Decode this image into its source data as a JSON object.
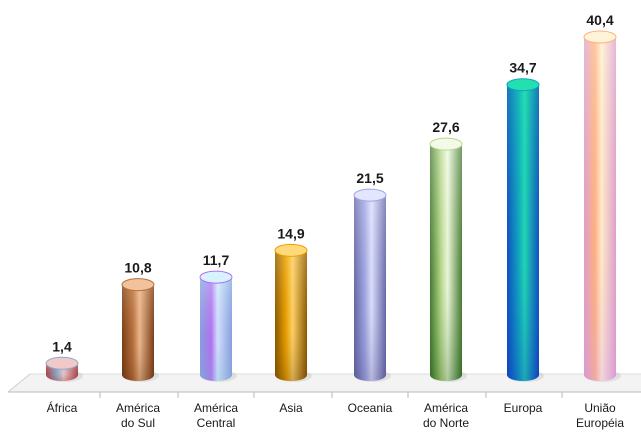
{
  "chart_data": {
    "type": "bar",
    "title": "",
    "xlabel": "",
    "ylabel": "",
    "categories": [
      "África",
      "América do Sul",
      "América Central",
      "Asia",
      "Oceania",
      "América do Norte",
      "Europa",
      "União Européia"
    ],
    "category_lines": [
      [
        "África"
      ],
      [
        "América",
        "do Sul"
      ],
      [
        "América",
        "Central"
      ],
      [
        "Asia"
      ],
      [
        "Oceania"
      ],
      [
        "América",
        "do Norte"
      ],
      [
        "Europa"
      ],
      [
        "União",
        "Européia"
      ]
    ],
    "values": [
      1.4,
      10.8,
      11.7,
      14.9,
      21.5,
      27.6,
      34.7,
      40.4
    ],
    "value_labels": [
      "1,4",
      "10,8",
      "11,7",
      "14,9",
      "21,5",
      "27,6",
      "34,7",
      "40,4"
    ],
    "ylim": [
      0,
      40.4
    ],
    "grid": false,
    "legend": "none",
    "bar_colors": [
      {
        "light": "#f2c9c9",
        "mid": "#8aa9c9",
        "dark": "#b03030"
      },
      {
        "light": "#f2c29a",
        "mid": "#b8703d",
        "dark": "#6e3410"
      },
      {
        "light": "#d8f2ff",
        "mid": "#b070f0",
        "dark": "#7fa7d8"
      },
      {
        "light": "#ffd97a",
        "mid": "#e8a000",
        "dark": "#7a4a00"
      },
      {
        "light": "#e4e6ff",
        "mid": "#a0a6e0",
        "dark": "#5a5a9a"
      },
      {
        "light": "#f4fae8",
        "mid": "#b6d88a",
        "dark": "#2f6a1e"
      },
      {
        "light": "#22e0b0",
        "mid": "#11a0c0",
        "dark": "#1040c0"
      },
      {
        "light": "#fff4d8",
        "mid": "#ffb080",
        "dark": "#d89ad8"
      }
    ]
  }
}
